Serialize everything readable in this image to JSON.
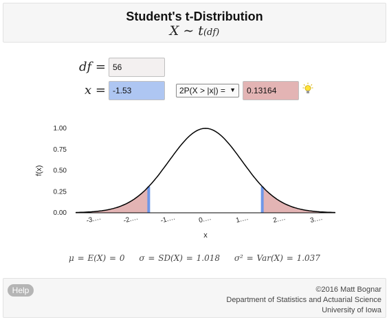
{
  "header": {
    "title": "Student's t-Distribution",
    "formula_main": "X ∼ t",
    "formula_sub": "(df)"
  },
  "inputs": {
    "df_label": "df =",
    "df_value": "56",
    "x_label": "x =",
    "x_value": "-1.53",
    "prob_select": "2P(X > |x|) =",
    "prob_value": "0.13164",
    "hint_icon": "lightbulb-icon"
  },
  "chart_data": {
    "type": "area",
    "xlabel": "x",
    "ylabel": "f(x)",
    "xlim": [
      -3.5,
      3.5
    ],
    "ylim": [
      0,
      1.0
    ],
    "xticks": [
      -3,
      -2,
      -1,
      0,
      1,
      2,
      3
    ],
    "xtick_labels": [
      "-3.…",
      "-2.…",
      "-1.…",
      "0.…",
      "1.…",
      "2.…",
      "3.…"
    ],
    "yticks": [
      0,
      0.25,
      0.5,
      0.75,
      1.0
    ],
    "ytick_labels": [
      "0.00",
      "0.25",
      "0.50",
      "0.75",
      "1.00"
    ],
    "series": [
      {
        "type": "curve",
        "x": [
          -3.5,
          -3.0,
          -2.5,
          -2.0,
          -1.53,
          -1.0,
          -0.5,
          0,
          0.5,
          1.0,
          1.53,
          2.0,
          2.5,
          3.0,
          3.5
        ],
        "y": [
          0.002,
          0.011,
          0.044,
          0.135,
          0.31,
          0.606,
          0.882,
          1.0,
          0.882,
          0.606,
          0.31,
          0.135,
          0.044,
          0.011,
          0.002
        ]
      },
      {
        "type": "shaded_tails",
        "cutoffs": [
          -1.53,
          1.53
        ]
      }
    ],
    "colors": {
      "curve": "#000000",
      "tail_fill": "#e3b4b4",
      "cutoff_line": "#6f97e8"
    },
    "grid": false
  },
  "stats": {
    "mean": "μ = E(X) = 0",
    "sd": "σ = SD(X) = 1.018",
    "var": "σ² = Var(X) = 1.037"
  },
  "footer": {
    "help_label": "Help",
    "copyright": "©2016 Matt Bognar",
    "department": "Department of Statistics and Actuarial Science",
    "university": "University of Iowa"
  }
}
